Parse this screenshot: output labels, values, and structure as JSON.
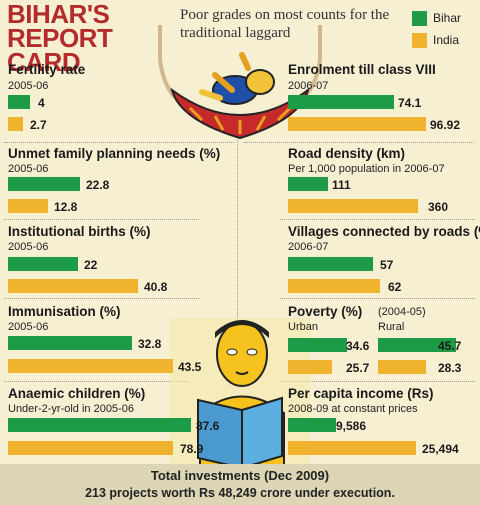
{
  "header": {
    "title": "BIHAR'S REPORT CARD",
    "subtitle": "Poor grades on most counts for the traditional laggard"
  },
  "colors": {
    "bihar": "#1e9b47",
    "india": "#f0b32e",
    "title": "#b32b2b"
  },
  "chart_data": [
    {
      "type": "bar",
      "title": "Fertility rate",
      "subtitle": "2005-06",
      "series": [
        {
          "name": "Bihar",
          "values": [
            4
          ],
          "labels": [
            "4"
          ]
        },
        {
          "name": "India",
          "values": [
            2.7
          ],
          "labels": [
            "2.7"
          ]
        }
      ]
    },
    {
      "type": "bar",
      "title": "Unmet family planning needs (%)",
      "subtitle": "2005-06",
      "series": [
        {
          "name": "Bihar",
          "values": [
            22.8
          ],
          "labels": [
            "22.8"
          ]
        },
        {
          "name": "India",
          "values": [
            12.8
          ],
          "labels": [
            "12.8"
          ]
        }
      ]
    },
    {
      "type": "bar",
      "title": "Institutional births (%)",
      "subtitle": "2005-06",
      "series": [
        {
          "name": "Bihar",
          "values": [
            22
          ],
          "labels": [
            "22"
          ]
        },
        {
          "name": "India",
          "values": [
            40.8
          ],
          "labels": [
            "40.8"
          ]
        }
      ]
    },
    {
      "type": "bar",
      "title": "Immunisation (%)",
      "subtitle": "2005-06",
      "series": [
        {
          "name": "Bihar",
          "values": [
            32.8
          ],
          "labels": [
            "32.8"
          ]
        },
        {
          "name": "India",
          "values": [
            43.5
          ],
          "labels": [
            "43.5"
          ]
        }
      ]
    },
    {
      "type": "bar",
      "title": "Anaemic children (%)",
      "subtitle": "Under-2-yr-old in 2005-06",
      "series": [
        {
          "name": "Bihar",
          "values": [
            87.6
          ],
          "labels": [
            "87.6"
          ]
        },
        {
          "name": "India",
          "values": [
            78.9
          ],
          "labels": [
            "78.9"
          ]
        }
      ]
    },
    {
      "type": "bar",
      "title": "Enrolment till class VIII",
      "subtitle": "2006-07",
      "series": [
        {
          "name": "Bihar",
          "values": [
            74.1
          ],
          "labels": [
            "74.1"
          ]
        },
        {
          "name": "India",
          "values": [
            96.92
          ],
          "labels": [
            "96.92"
          ]
        }
      ]
    },
    {
      "type": "bar",
      "title": "Road density (km)",
      "subtitle": "Per 1,000 population in 2006-07",
      "series": [
        {
          "name": "Bihar",
          "values": [
            111
          ],
          "labels": [
            "111"
          ]
        },
        {
          "name": "India",
          "values": [
            360
          ],
          "labels": [
            "360"
          ]
        }
      ]
    },
    {
      "type": "bar",
      "title": "Villages connected by roads (%)",
      "subtitle": "2006-07",
      "series": [
        {
          "name": "Bihar",
          "values": [
            57
          ],
          "labels": [
            "57"
          ]
        },
        {
          "name": "India",
          "values": [
            62
          ],
          "labels": [
            "62"
          ]
        }
      ]
    },
    {
      "type": "bar",
      "title": "Poverty (%)",
      "subtitle": "(2004-05)",
      "categories": [
        "Urban",
        "Rural"
      ],
      "series": [
        {
          "name": "Bihar",
          "values": [
            34.6,
            45.7
          ],
          "labels": [
            "34.6",
            "45.7"
          ]
        },
        {
          "name": "India",
          "values": [
            25.7,
            28.3
          ],
          "labels": [
            "25.7",
            "28.3"
          ]
        }
      ]
    },
    {
      "type": "bar",
      "title": "Per capita income (Rs)",
      "subtitle": "2008-09 at constant prices",
      "series": [
        {
          "name": "Bihar",
          "values": [
            9586
          ],
          "labels": [
            "9,586"
          ]
        },
        {
          "name": "India",
          "values": [
            25494
          ],
          "labels": [
            "25,494"
          ]
        }
      ]
    }
  ],
  "legend": [
    {
      "label": "Bihar"
    },
    {
      "label": "India"
    }
  ],
  "footer": {
    "title": "Total investments (Dec 2009)",
    "text": "213 projects worth Rs 48,249 crore under execution."
  }
}
